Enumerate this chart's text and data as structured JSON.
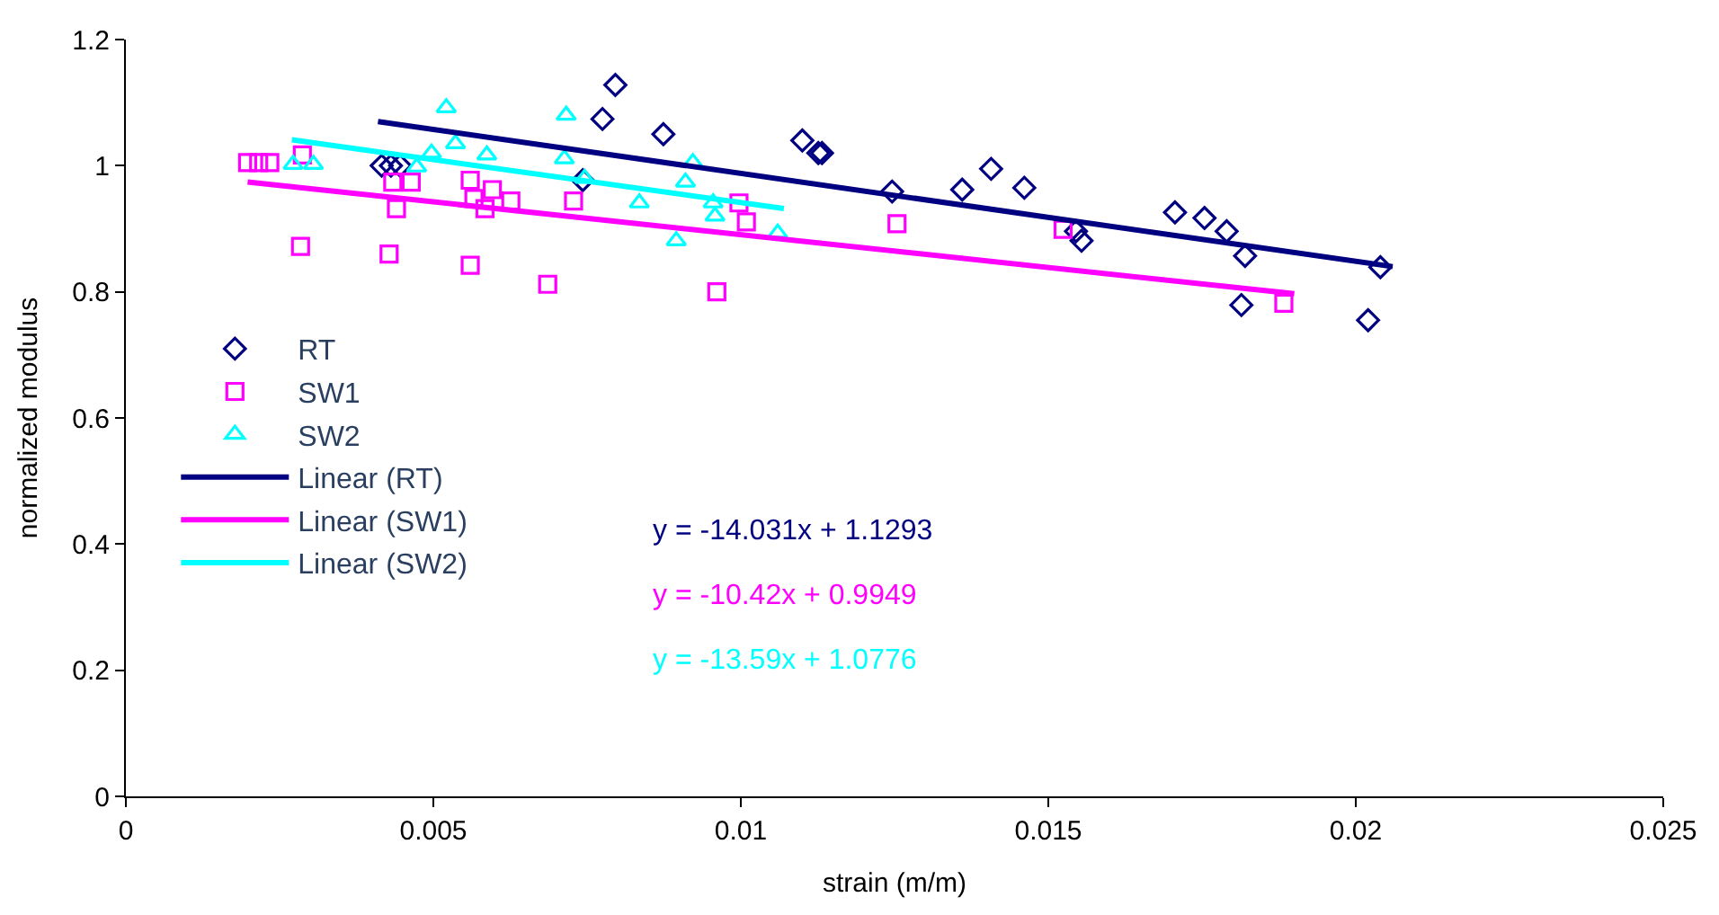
{
  "chart_data": {
    "type": "scatter",
    "xlabel": "strain (m/m)",
    "ylabel": "normalized modulus",
    "xlim": [
      0,
      0.025
    ],
    "xticks": [
      0,
      0.005,
      0.01,
      0.015,
      0.02,
      0.025
    ],
    "ylim": [
      0,
      1.2
    ],
    "yticks": [
      0,
      0.2,
      0.4,
      0.6,
      0.8,
      1,
      1.2
    ],
    "grid": false,
    "legend": "left",
    "annotations": [
      "y = -14.031x + 1.1293",
      "y = -10.42x + 0.9949",
      "y = -13.59x + 1.0776"
    ],
    "series": [
      {
        "name": "RT",
        "color": "#000080",
        "marker": "diamond",
        "x": [
          0.00416,
          0.00431,
          0.00446,
          0.00743,
          0.00775,
          0.00796,
          0.00874,
          0.011,
          0.01126,
          0.01132,
          0.01246,
          0.0136,
          0.01407,
          0.01461,
          0.01545,
          0.01554,
          0.01706,
          0.01754,
          0.0179,
          0.0182,
          0.01814,
          0.0204,
          0.0202
        ],
        "values": [
          1.0,
          1.0,
          1.0,
          0.977,
          1.074,
          1.128,
          1.05,
          1.04,
          1.02,
          1.02,
          0.959,
          0.962,
          0.995,
          0.965,
          0.896,
          0.881,
          0.926,
          0.917,
          0.896,
          0.857,
          0.779,
          0.839,
          0.755
        ]
      },
      {
        "name": "SW1",
        "color": "#ff00ff",
        "marker": "square",
        "x": [
          0.00198,
          0.00216,
          0.00234,
          0.00287,
          0.00284,
          0.00428,
          0.00434,
          0.0044,
          0.00464,
          0.0056,
          0.0056,
          0.00566,
          0.00584,
          0.00596,
          0.00626,
          0.00686,
          0.00728,
          0.00961,
          0.00997,
          0.01009,
          0.01254,
          0.01524,
          0.01883
        ],
        "values": [
          1.005,
          1.005,
          1.005,
          1.017,
          0.872,
          0.86,
          0.974,
          0.932,
          0.974,
          0.842,
          0.977,
          0.948,
          0.932,
          0.962,
          0.944,
          0.812,
          0.944,
          0.8,
          0.941,
          0.911,
          0.908,
          0.899,
          0.782
        ]
      },
      {
        "name": "SW2",
        "color": "#00ffff",
        "marker": "triangle",
        "x": [
          0.00272,
          0.00305,
          0.00473,
          0.00497,
          0.00521,
          0.00536,
          0.00587,
          0.00713,
          0.00716,
          0.00746,
          0.00835,
          0.00895,
          0.0091,
          0.00922,
          0.00955,
          0.00958,
          0.0106
        ],
        "values": [
          1.002,
          1.002,
          0.998,
          1.02,
          1.092,
          1.035,
          1.017,
          1.011,
          1.08,
          0.98,
          0.941,
          0.881,
          0.974,
          1.005,
          0.941,
          0.92,
          0.893
        ]
      },
      {
        "name": "Linear (RT)",
        "type": "line",
        "color": "#000080",
        "marker": "none",
        "x": [
          0.0041,
          0.0206
        ],
        "values": [
          1.07,
          0.84
        ]
      },
      {
        "name": "Linear (SW1)",
        "type": "line",
        "color": "#ff00ff",
        "marker": "none",
        "x": [
          0.00198,
          0.019
        ],
        "values": [
          0.974,
          0.797
        ]
      },
      {
        "name": "Linear (SW2)",
        "type": "line",
        "color": "#00ffff",
        "marker": "none",
        "x": [
          0.0027,
          0.0107
        ],
        "values": [
          1.041,
          0.932
        ]
      }
    ]
  }
}
